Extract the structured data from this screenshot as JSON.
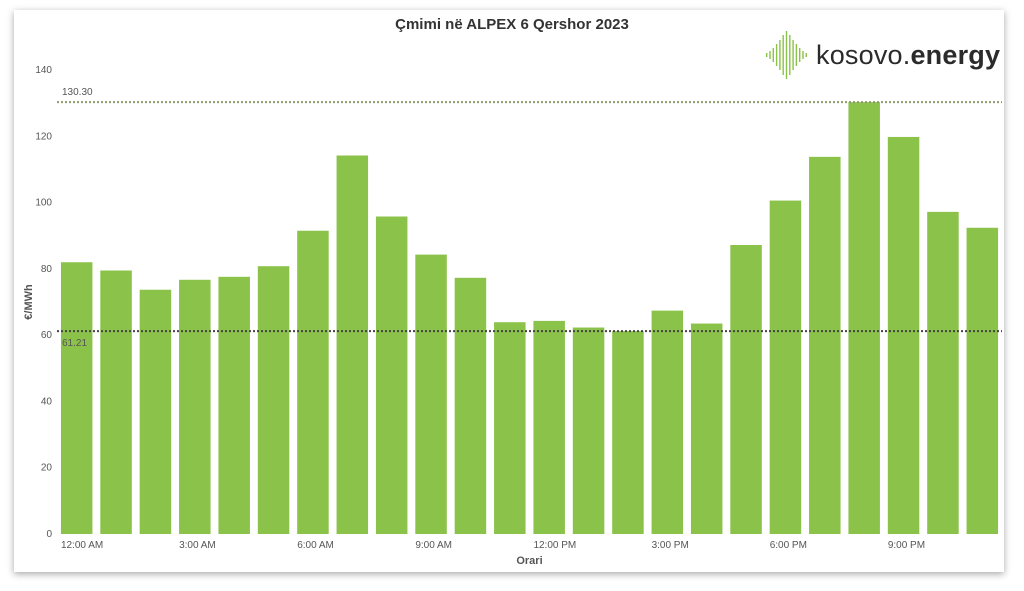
{
  "chart_data": {
    "type": "bar",
    "title": "Çmimi në ALPEX 6 Qershor 2023",
    "xlabel": "Orari",
    "ylabel": "€/MWh",
    "ylim": [
      0,
      140
    ],
    "yticks": [
      0,
      20,
      40,
      60,
      80,
      100,
      120,
      140
    ],
    "grid": false,
    "color": "#8bc24a",
    "x_tick_labels": [
      {
        "index": 0,
        "label": "12:00 AM"
      },
      {
        "index": 3,
        "label": "3:00 AM"
      },
      {
        "index": 6,
        "label": "6:00 AM"
      },
      {
        "index": 9,
        "label": "9:00 AM"
      },
      {
        "index": 12,
        "label": "12:00 PM"
      },
      {
        "index": 15,
        "label": "3:00 PM"
      },
      {
        "index": 18,
        "label": "6:00 PM"
      },
      {
        "index": 21,
        "label": "9:00 PM"
      }
    ],
    "values": [
      82.0,
      79.5,
      73.7,
      76.7,
      77.6,
      80.8,
      91.5,
      114.2,
      95.8,
      84.3,
      77.3,
      63.9,
      64.3,
      62.3,
      61.21,
      67.4,
      63.5,
      87.2,
      100.6,
      113.8,
      130.3,
      119.8,
      97.2,
      92.4
    ],
    "reference_lines": [
      {
        "name": "max",
        "value": 130.3,
        "label": "130.30",
        "color": "#8a9a6a"
      },
      {
        "name": "min",
        "value": 61.21,
        "label": "61.21",
        "color": "#444444"
      }
    ]
  },
  "logo": {
    "name": "kosovo-energy-logo",
    "text_regular": "kosovo.",
    "text_bold": "energy",
    "icon_color": "#8bc24a"
  }
}
